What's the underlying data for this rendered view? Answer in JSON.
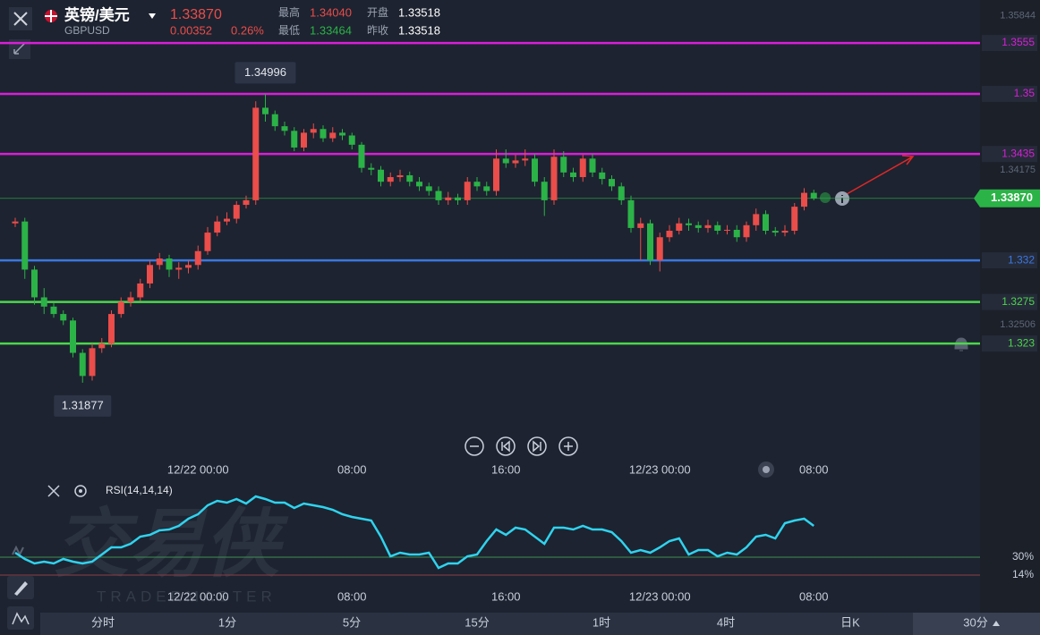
{
  "header": {
    "symbol": "英镑/美元",
    "code": "GBPUSD",
    "price": "1.33870",
    "change": "0.00352",
    "change_pct": "0.26%",
    "high_label": "最高",
    "high": "1.34040",
    "low_label": "最低",
    "low": "1.33464",
    "open_label": "开盘",
    "open": "1.33518",
    "prev_close_label": "昨收",
    "prev_close": "1.33518"
  },
  "watermark": {
    "main": "交易侠",
    "sub": "TRADERMASTER"
  },
  "timeframes": [
    "分时",
    "1分",
    "5分",
    "15分",
    "1时",
    "4时",
    "日K",
    "30分"
  ],
  "chart_data": [
    {
      "type": "candlestick",
      "categories": [
        null,
        null,
        null,
        null,
        null,
        null,
        null,
        null,
        null,
        null,
        null,
        null,
        null,
        null,
        null,
        null,
        null,
        null,
        null,
        "12/22 00:00",
        null,
        null,
        null,
        null,
        null,
        null,
        null,
        null,
        null,
        null,
        null,
        null,
        null,
        null,
        null,
        "08:00",
        null,
        null,
        null,
        null,
        null,
        null,
        null,
        null,
        null,
        null,
        null,
        null,
        null,
        null,
        null,
        "16:00",
        null,
        null,
        null,
        null,
        null,
        null,
        null,
        null,
        null,
        null,
        null,
        null,
        null,
        null,
        null,
        "12/23 00:00",
        null,
        null,
        null,
        null,
        null,
        null,
        null,
        null,
        null,
        null,
        null,
        null,
        null,
        null,
        null,
        "08:00"
      ],
      "open": [
        1.336,
        1.3362,
        1.331,
        1.328,
        1.327,
        1.3262,
        1.3255,
        1.322,
        1.3195,
        1.3225,
        1.323,
        1.3262,
        1.3275,
        1.328,
        1.3295,
        1.3315,
        1.3322,
        1.331,
        1.3312,
        1.3315,
        1.333,
        1.335,
        1.3362,
        1.3365,
        1.338,
        1.3385,
        1.3485,
        1.3478,
        1.3465,
        1.346,
        1.3442,
        1.3458,
        1.3462,
        1.3452,
        1.3458,
        1.3455,
        1.3445,
        1.342,
        1.3418,
        1.3405,
        1.341,
        1.3412,
        1.3405,
        1.34,
        1.3395,
        1.3385,
        1.3388,
        1.3385,
        1.3405,
        1.34,
        1.3395,
        1.343,
        1.3425,
        1.3428,
        1.343,
        1.3405,
        1.3385,
        1.3432,
        1.3415,
        1.341,
        1.343,
        1.3415,
        1.3408,
        1.34,
        1.3385,
        1.3355,
        1.336,
        1.332,
        1.3345,
        1.3352,
        1.336,
        1.3358,
        1.3355,
        1.3358,
        1.3352,
        1.3353,
        1.3345,
        1.3358,
        1.337,
        1.3352,
        1.335,
        1.3352,
        1.3378,
        1.3393
      ],
      "high": [
        1.3366,
        1.3366,
        1.3314,
        1.329,
        1.3274,
        1.3266,
        1.3258,
        1.3224,
        1.323,
        1.3236,
        1.3266,
        1.328,
        1.3286,
        1.33,
        1.332,
        1.3328,
        1.3326,
        1.3318,
        1.332,
        1.3336,
        1.3356,
        1.3368,
        1.3372,
        1.3384,
        1.339,
        1.3492,
        1.34996,
        1.3482,
        1.347,
        1.3464,
        1.3462,
        1.3468,
        1.3466,
        1.3464,
        1.3462,
        1.3458,
        1.3448,
        1.3425,
        1.3422,
        1.3415,
        1.3418,
        1.3416,
        1.341,
        1.3404,
        1.34,
        1.3394,
        1.3392,
        1.341,
        1.341,
        1.3405,
        1.344,
        1.344,
        1.3434,
        1.344,
        1.3435,
        1.341,
        1.344,
        1.3438,
        1.342,
        1.3434,
        1.3435,
        1.342,
        1.3412,
        1.3404,
        1.339,
        1.3366,
        1.3364,
        1.335,
        1.3358,
        1.3366,
        1.3365,
        1.3362,
        1.3364,
        1.3362,
        1.3358,
        1.3358,
        1.3362,
        1.3376,
        1.3374,
        1.3356,
        1.3358,
        1.3382,
        1.3398,
        1.33964
      ],
      "low": [
        1.3356,
        1.33,
        1.3272,
        1.3262,
        1.3258,
        1.325,
        1.3215,
        1.31877,
        1.319,
        1.322,
        1.3226,
        1.3258,
        1.327,
        1.3276,
        1.329,
        1.331,
        1.3302,
        1.33,
        1.3306,
        1.331,
        1.3326,
        1.3346,
        1.3358,
        1.336,
        1.3376,
        1.338,
        1.347,
        1.346,
        1.3455,
        1.3438,
        1.3438,
        1.3452,
        1.3448,
        1.3448,
        1.345,
        1.344,
        1.3415,
        1.3412,
        1.34,
        1.34,
        1.3405,
        1.34,
        1.3395,
        1.339,
        1.338,
        1.338,
        1.338,
        1.338,
        1.3395,
        1.339,
        1.339,
        1.342,
        1.342,
        1.3422,
        1.34,
        1.3368,
        1.338,
        1.341,
        1.3405,
        1.3405,
        1.341,
        1.3402,
        1.3395,
        1.338,
        1.335,
        1.332,
        1.3315,
        1.3308,
        1.334,
        1.3348,
        1.3352,
        1.335,
        1.335,
        1.3348,
        1.3348,
        1.334,
        1.334,
        1.3352,
        1.3348,
        1.3346,
        1.3346,
        1.3348,
        1.3374,
        1.3385
      ],
      "close": [
        1.3362,
        1.331,
        1.328,
        1.327,
        1.3262,
        1.3255,
        1.322,
        1.3195,
        1.3225,
        1.323,
        1.3262,
        1.3275,
        1.328,
        1.3295,
        1.3315,
        1.3322,
        1.331,
        1.3312,
        1.3315,
        1.333,
        1.335,
        1.3362,
        1.3365,
        1.338,
        1.3385,
        1.3485,
        1.3478,
        1.3465,
        1.346,
        1.3442,
        1.3458,
        1.3462,
        1.3452,
        1.3458,
        1.3455,
        1.3445,
        1.342,
        1.3418,
        1.3405,
        1.341,
        1.3412,
        1.3405,
        1.34,
        1.3395,
        1.3385,
        1.3388,
        1.3385,
        1.3405,
        1.34,
        1.3395,
        1.343,
        1.3425,
        1.3428,
        1.343,
        1.3405,
        1.3385,
        1.3432,
        1.3415,
        1.341,
        1.343,
        1.3415,
        1.3408,
        1.34,
        1.3385,
        1.3355,
        1.336,
        1.332,
        1.3345,
        1.3352,
        1.336,
        1.3358,
        1.3355,
        1.3358,
        1.3352,
        1.3353,
        1.3345,
        1.3358,
        1.337,
        1.3352,
        1.335,
        1.3352,
        1.3378,
        1.3393,
        1.3387
      ],
      "up_color": "#ea4d4a",
      "down_color": "#2bb347",
      "ylim": [
        1.3118,
        1.3601
      ],
      "yticks": [
        1.32506,
        1.34175,
        1.35844
      ],
      "levels": [
        {
          "value": 1.3555,
          "color": "#d81fd8"
        },
        {
          "value": 1.35,
          "color": "#d81fd8"
        },
        {
          "value": 1.3435,
          "color": "#d81fd8"
        },
        {
          "value": 1.332,
          "color": "#3a78e0"
        },
        {
          "value": 1.3275,
          "color": "#4cd64c"
        },
        {
          "value": 1.323,
          "color": "#4cd64c"
        }
      ],
      "last_price": {
        "value": 1.3387,
        "label": "1.33870"
      },
      "last_color": "#2bb347",
      "max": 1.34996,
      "min": 1.31877
    },
    {
      "type": "line",
      "title": "RSI(14,14,14)",
      "categories": [
        null,
        null,
        null,
        null,
        null,
        null,
        null,
        null,
        null,
        null,
        null,
        null,
        null,
        null,
        null,
        null,
        null,
        null,
        null,
        "12/22 00:00",
        null,
        null,
        null,
        null,
        null,
        null,
        null,
        null,
        null,
        null,
        null,
        null,
        null,
        null,
        null,
        "08:00",
        null,
        null,
        null,
        null,
        null,
        null,
        null,
        null,
        null,
        null,
        null,
        null,
        null,
        null,
        null,
        "16:00",
        null,
        null,
        null,
        null,
        null,
        null,
        null,
        null,
        null,
        null,
        null,
        null,
        null,
        null,
        null,
        "12/23 00:00",
        null,
        null,
        null,
        null,
        null,
        null,
        null,
        null,
        null,
        null,
        null,
        null,
        null,
        null,
        null,
        "08:00"
      ],
      "values": [
        34,
        28.4,
        24.4,
        26,
        24.4,
        28.4,
        26,
        24.4,
        26,
        32.4,
        38.8,
        38.8,
        42,
        48.4,
        50,
        54,
        54.8,
        58,
        64.4,
        68.4,
        76.4,
        80.4,
        78.8,
        82,
        78,
        84.4,
        82,
        78.8,
        78.8,
        74,
        78,
        76.4,
        74.8,
        72.4,
        68.4,
        66,
        64.4,
        62.8,
        48.4,
        30.8,
        34,
        32.4,
        32.4,
        34,
        20.4,
        24.4,
        24.4,
        30.8,
        32.4,
        44.4,
        54.8,
        50,
        56.4,
        54.8,
        48.4,
        42,
        56.4,
        56.4,
        54.8,
        58,
        54.8,
        54.8,
        52.4,
        44.4,
        34,
        36.4,
        34,
        38.8,
        44.4,
        46.8,
        32.4,
        36.4,
        36.4,
        30.8,
        34,
        32.4,
        38.8,
        48.4,
        50,
        46.8,
        60.4,
        62.8,
        64.4,
        58
      ],
      "color": "#2fd3ee",
      "ylim": [
        0,
        100
      ],
      "levels": [
        {
          "value": 30,
          "label": "30%",
          "color": "#3f8f52"
        },
        {
          "value": 14,
          "label": "14%",
          "color": "#8f3f46"
        }
      ]
    }
  ]
}
